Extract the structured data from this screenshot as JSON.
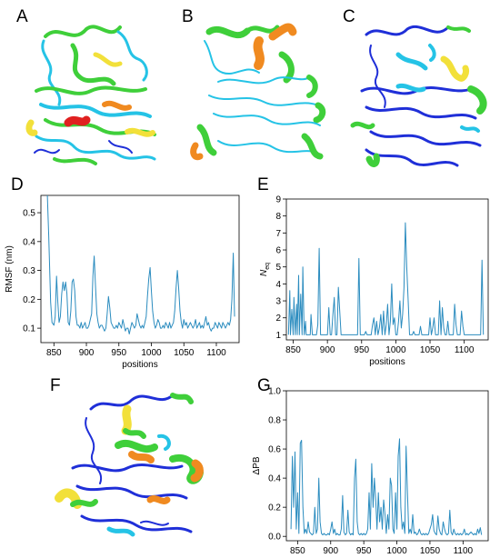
{
  "figure": {
    "panel_labels": [
      "A",
      "B",
      "C",
      "D",
      "E",
      "F",
      "G"
    ],
    "structure_colors": {
      "low": "#1f2fd8",
      "low_mid": "#25c3e6",
      "mid": "#3fcf3a",
      "high_mid": "#f2e03a",
      "high": "#f08a20",
      "max": "#e02020"
    }
  },
  "chart_data": [
    {
      "id": "D",
      "type": "line",
      "xlabel": "positions",
      "ylabel": "RMSF (nm)",
      "xlim": [
        830,
        1135
      ],
      "ylim": [
        0.05,
        0.56
      ],
      "xticks": [
        850,
        900,
        950,
        1000,
        1050,
        1100
      ],
      "yticks": [
        0.1,
        0.2,
        0.3,
        0.4,
        0.5
      ],
      "line_color": "#2b8cbf",
      "series": [
        {
          "x": [
            840,
            842,
            845,
            847,
            850,
            852,
            854,
            856,
            858,
            860,
            862,
            864,
            866,
            868,
            870,
            872,
            874,
            876,
            878,
            880,
            882,
            884,
            886,
            888,
            890,
            892,
            894,
            896,
            898,
            900,
            902,
            904,
            906,
            908,
            910,
            912,
            914,
            916,
            918,
            920,
            922,
            924,
            926,
            928,
            930,
            932,
            934,
            936,
            938,
            940,
            942,
            944,
            946,
            948,
            950,
            952,
            954,
            956,
            958,
            960,
            962,
            964,
            966,
            968,
            970,
            972,
            974,
            976,
            978,
            980,
            982,
            984,
            986,
            988,
            990,
            992,
            994,
            996,
            998,
            1000,
            1002,
            1004,
            1006,
            1008,
            1010,
            1012,
            1014,
            1016,
            1018,
            1020,
            1022,
            1024,
            1026,
            1028,
            1030,
            1032,
            1034,
            1036,
            1038,
            1040,
            1042,
            1044,
            1046,
            1048,
            1050,
            1052,
            1054,
            1056,
            1058,
            1060,
            1062,
            1064,
            1066,
            1068,
            1070,
            1072,
            1074,
            1076,
            1078,
            1080,
            1082,
            1084,
            1086,
            1088,
            1090,
            1092,
            1094,
            1096,
            1098,
            1100,
            1102,
            1104,
            1106,
            1108,
            1110,
            1112,
            1114,
            1116,
            1118,
            1120,
            1122,
            1124,
            1126,
            1128
          ],
          "y": [
            0.56,
            0.42,
            0.19,
            0.12,
            0.11,
            0.14,
            0.28,
            0.19,
            0.12,
            0.14,
            0.22,
            0.26,
            0.23,
            0.26,
            0.22,
            0.12,
            0.11,
            0.16,
            0.26,
            0.27,
            0.23,
            0.14,
            0.11,
            0.11,
            0.1,
            0.12,
            0.1,
            0.11,
            0.12,
            0.1,
            0.1,
            0.11,
            0.13,
            0.15,
            0.28,
            0.35,
            0.25,
            0.15,
            0.12,
            0.1,
            0.11,
            0.11,
            0.1,
            0.09,
            0.1,
            0.15,
            0.21,
            0.17,
            0.12,
            0.11,
            0.1,
            0.1,
            0.11,
            0.1,
            0.12,
            0.11,
            0.1,
            0.13,
            0.11,
            0.09,
            0.1,
            0.1,
            0.08,
            0.1,
            0.12,
            0.11,
            0.1,
            0.11,
            0.15,
            0.13,
            0.11,
            0.1,
            0.11,
            0.1,
            0.12,
            0.14,
            0.21,
            0.27,
            0.31,
            0.23,
            0.16,
            0.12,
            0.1,
            0.11,
            0.13,
            0.12,
            0.1,
            0.1,
            0.11,
            0.1,
            0.12,
            0.11,
            0.1,
            0.12,
            0.1,
            0.11,
            0.12,
            0.16,
            0.24,
            0.3,
            0.24,
            0.16,
            0.12,
            0.1,
            0.13,
            0.11,
            0.12,
            0.1,
            0.11,
            0.12,
            0.11,
            0.1,
            0.11,
            0.13,
            0.1,
            0.11,
            0.12,
            0.1,
            0.11,
            0.1,
            0.12,
            0.14,
            0.11,
            0.12,
            0.1,
            0.09,
            0.1,
            0.1,
            0.12,
            0.11,
            0.1,
            0.12,
            0.11,
            0.1,
            0.12,
            0.11,
            0.1,
            0.11,
            0.12,
            0.11,
            0.13,
            0.2,
            0.36,
            0.14
          ]
        }
      ]
    },
    {
      "id": "E",
      "type": "line",
      "xlabel": "positions",
      "ylabel_main": "N",
      "ylabel_sub": "eq",
      "xlim": [
        840,
        1135
      ],
      "ylim": [
        0.7,
        9
      ],
      "xticks": [
        850,
        900,
        950,
        1000,
        1050,
        1100
      ],
      "yticks": [
        1,
        2,
        3,
        4,
        5,
        6,
        7,
        8,
        9
      ],
      "line_color": "#2b8cbf",
      "series": [
        {
          "x": [
            843,
            845,
            846,
            848,
            850,
            851,
            853,
            855,
            856,
            858,
            859,
            861,
            863,
            864,
            866,
            868,
            869,
            871,
            873,
            875,
            876,
            878,
            880,
            882,
            884,
            886,
            888,
            890,
            892,
            894,
            896,
            898,
            900,
            902,
            904,
            906,
            908,
            910,
            912,
            914,
            916,
            918,
            920,
            922,
            924,
            926,
            928,
            930,
            932,
            934,
            936,
            938,
            940,
            942,
            944,
            946,
            948,
            950,
            952,
            954,
            956,
            958,
            960,
            962,
            964,
            966,
            968,
            970,
            972,
            974,
            976,
            978,
            980,
            982,
            984,
            986,
            988,
            990,
            992,
            994,
            996,
            998,
            1000,
            1002,
            1004,
            1006,
            1008,
            1010,
            1012,
            1014,
            1016,
            1018,
            1020,
            1022,
            1024,
            1026,
            1028,
            1030,
            1032,
            1034,
            1036,
            1038,
            1040,
            1042,
            1044,
            1046,
            1048,
            1050,
            1052,
            1054,
            1056,
            1058,
            1060,
            1062,
            1064,
            1066,
            1068,
            1070,
            1072,
            1074,
            1076,
            1078,
            1080,
            1082,
            1084,
            1086,
            1088,
            1090,
            1092,
            1094,
            1096,
            1098,
            1100,
            1102,
            1104,
            1106,
            1108,
            1110,
            1112,
            1114,
            1116,
            1118,
            1120,
            1122,
            1124,
            1126,
            1128
          ],
          "y": [
            1,
            3.6,
            1,
            2.5,
            1,
            3.2,
            1,
            2.8,
            1,
            4.5,
            1,
            3.4,
            1,
            5,
            1,
            1.8,
            1,
            1,
            1,
            1,
            2.2,
            1,
            1,
            1,
            1,
            1.6,
            6.1,
            1,
            1,
            1,
            1,
            1,
            1,
            2.6,
            1,
            1,
            2.2,
            3.2,
            1,
            1,
            3.8,
            2.4,
            1,
            1,
            1,
            1,
            1,
            1,
            1,
            1,
            1,
            1,
            1,
            1,
            1,
            5.5,
            1,
            1,
            1,
            1,
            1.2,
            1,
            1,
            1,
            1,
            1.6,
            2,
            1,
            1.8,
            1,
            1.4,
            2.2,
            1,
            2.4,
            1,
            1.6,
            2.8,
            1,
            1.8,
            4,
            1.6,
            2,
            1,
            1,
            1.8,
            3,
            1.4,
            2.2,
            3.8,
            7.6,
            5,
            3,
            1,
            1,
            1,
            1.2,
            1,
            1,
            1,
            1,
            1.5,
            1,
            1,
            1,
            1,
            1,
            1,
            2,
            1,
            1.4,
            2,
            1,
            1,
            1,
            3,
            1,
            2.6,
            1.4,
            1,
            1,
            1.8,
            1,
            1,
            1,
            1,
            2.8,
            1.6,
            1,
            1,
            1,
            2.4,
            1.5,
            1,
            1,
            1,
            1,
            1,
            1,
            1,
            1,
            1,
            1,
            1,
            1,
            1,
            5.4,
            1
          ]
        }
      ]
    },
    {
      "id": "G",
      "type": "line",
      "xlabel": "positions",
      "ylabel": "ΔPB",
      "xlim": [
        833,
        1138
      ],
      "ylim": [
        -0.03,
        1.0
      ],
      "xticks": [
        850,
        900,
        950,
        1000,
        1050,
        1100
      ],
      "yticks": [
        0.0,
        0.2,
        0.4,
        0.6,
        0.8,
        1.0
      ],
      "line_color": "#2b8cbf",
      "series": [
        {
          "x": [
            840,
            842,
            844,
            846,
            848,
            850,
            852,
            854,
            856,
            858,
            860,
            862,
            864,
            866,
            868,
            870,
            872,
            874,
            876,
            878,
            880,
            882,
            884,
            886,
            888,
            890,
            892,
            894,
            896,
            898,
            900,
            902,
            904,
            906,
            908,
            910,
            912,
            914,
            916,
            918,
            920,
            922,
            924,
            926,
            928,
            930,
            932,
            934,
            936,
            938,
            940,
            942,
            944,
            946,
            948,
            950,
            952,
            954,
            956,
            958,
            960,
            962,
            964,
            966,
            968,
            970,
            972,
            974,
            976,
            978,
            980,
            982,
            984,
            986,
            988,
            990,
            992,
            994,
            996,
            998,
            1000,
            1002,
            1004,
            1006,
            1008,
            1010,
            1012,
            1014,
            1016,
            1018,
            1020,
            1022,
            1024,
            1026,
            1028,
            1030,
            1032,
            1034,
            1036,
            1038,
            1040,
            1042,
            1044,
            1046,
            1048,
            1050,
            1052,
            1054,
            1056,
            1058,
            1060,
            1062,
            1064,
            1066,
            1068,
            1070,
            1072,
            1074,
            1076,
            1078,
            1080,
            1082,
            1084,
            1086,
            1088,
            1090,
            1092,
            1094,
            1096,
            1098,
            1100,
            1102,
            1104,
            1106,
            1108,
            1110,
            1112,
            1114,
            1116,
            1118,
            1120,
            1122,
            1124,
            1126,
            1128
          ],
          "y": [
            0.05,
            0.55,
            0.2,
            0.58,
            0.05,
            0.3,
            0.02,
            0.64,
            0.66,
            0.2,
            0.02,
            0.05,
            0.02,
            0.1,
            0.03,
            0.02,
            0.01,
            0.02,
            0.2,
            0.02,
            0.05,
            0.4,
            0.1,
            0.02,
            0.01,
            0.02,
            0.01,
            0.01,
            0.02,
            0.01,
            0.05,
            0.1,
            0.02,
            0.05,
            0.01,
            0.02,
            0.01,
            0.01,
            0.05,
            0.28,
            0.03,
            0.01,
            0.02,
            0.18,
            0.03,
            0.01,
            0.02,
            0.01,
            0.4,
            0.53,
            0.1,
            0.02,
            0.01,
            0.02,
            0.01,
            0.02,
            0.01,
            0.02,
            0.05,
            0.3,
            0.05,
            0.5,
            0.2,
            0.4,
            0.25,
            0.05,
            0.3,
            0.1,
            0.2,
            0.05,
            0.25,
            0.15,
            0.02,
            0.15,
            0.05,
            0.4,
            0.35,
            0.05,
            0.02,
            0.3,
            0.05,
            0.55,
            0.67,
            0.2,
            0.05,
            0.1,
            0.02,
            0.62,
            0.3,
            0.02,
            0.05,
            0.02,
            0.15,
            0.02,
            0.03,
            0.01,
            0.02,
            0.05,
            0.02,
            0.01,
            0.02,
            0.01,
            0.02,
            0.01,
            0.02,
            0.05,
            0.08,
            0.15,
            0.04,
            0.02,
            0.01,
            0.14,
            0.05,
            0.02,
            0.01,
            0.1,
            0.05,
            0.02,
            0.01,
            0.02,
            0.18,
            0.03,
            0.01,
            0.05,
            0.02,
            0.01,
            0.02,
            0.01,
            0.02,
            0.01,
            0.02,
            0.05,
            0.01,
            0.02,
            0.01,
            0.02,
            0.03,
            0.02,
            0.01,
            0.02,
            0.01,
            0.05,
            0.02,
            0.06,
            0.01
          ]
        }
      ]
    }
  ]
}
